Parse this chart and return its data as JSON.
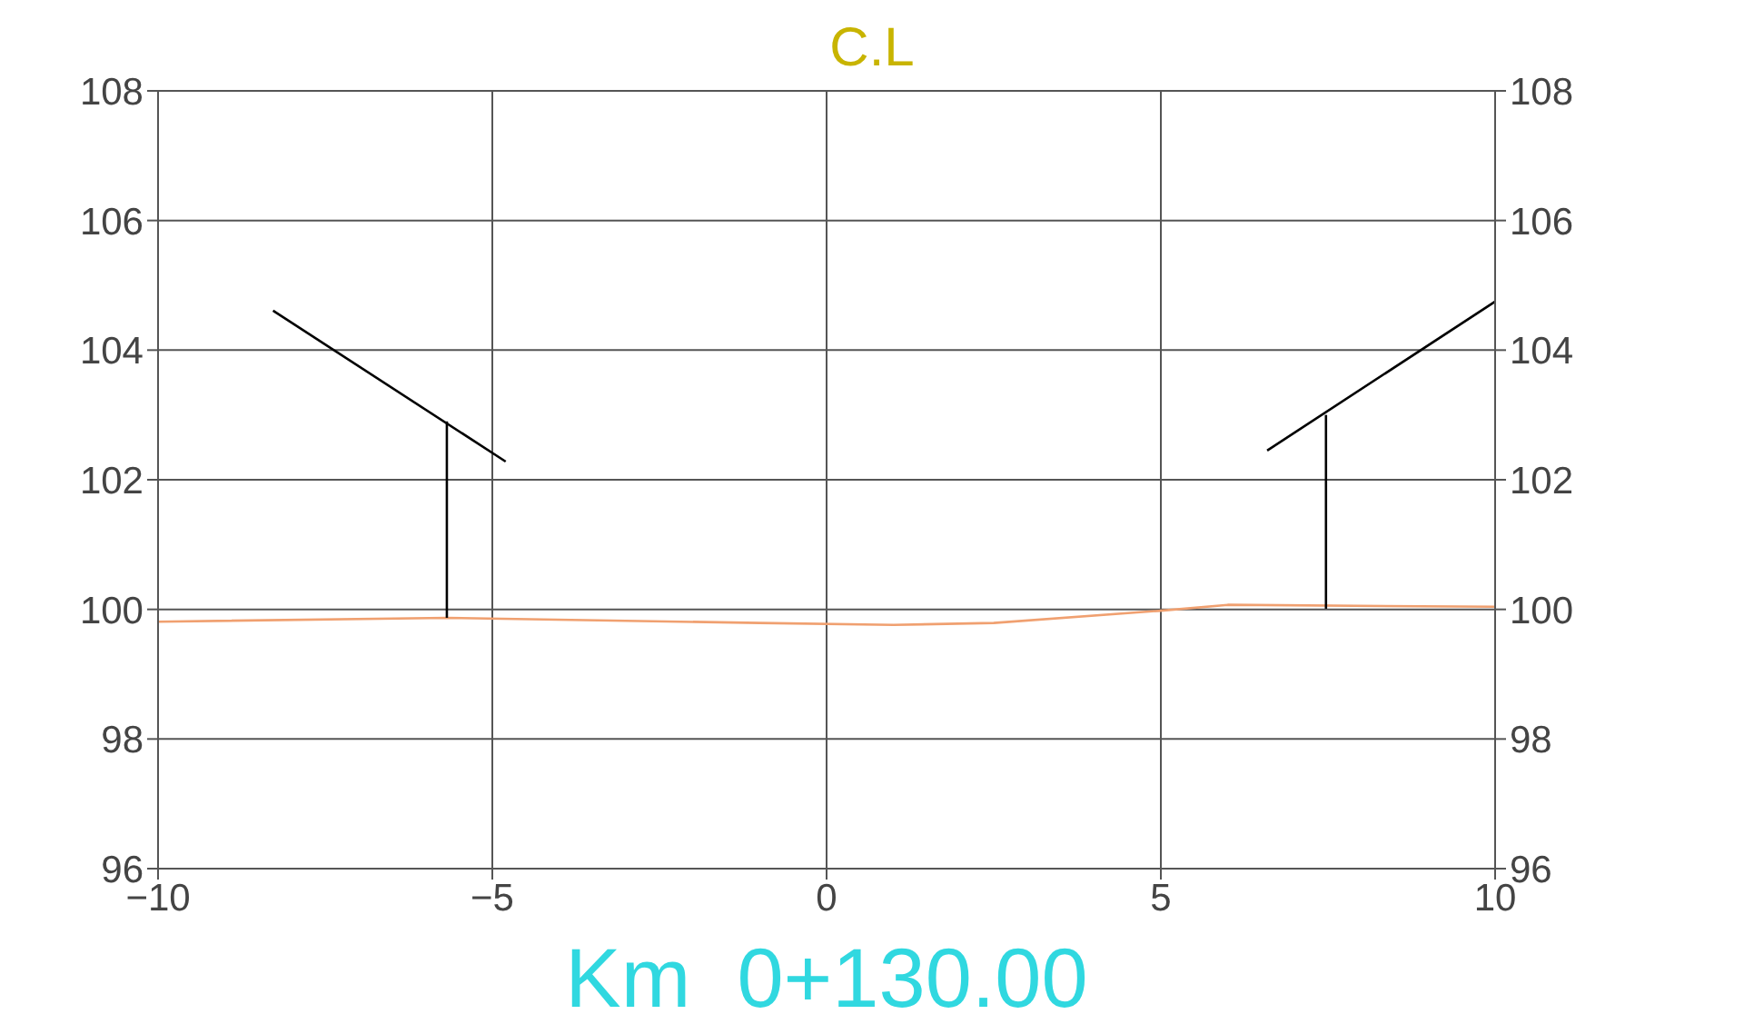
{
  "chart_data": {
    "type": "line",
    "title": "C.L",
    "xlabel": "Km  0+130.00",
    "xlim": [
      -10,
      10
    ],
    "xticks": [
      -10,
      -5,
      0,
      5,
      10
    ],
    "ylim": [
      96,
      108
    ],
    "yticks": [
      96,
      98,
      100,
      102,
      104,
      106,
      108
    ],
    "y2lim": [
      96,
      108
    ],
    "y2ticks": [
      96,
      98,
      100,
      102,
      104,
      106,
      108
    ],
    "grid": true,
    "legend": false,
    "marker": "none",
    "line_style": "solid",
    "series": [
      {
        "color": "#f0a070",
        "x": [
          -10,
          -5.68,
          -1,
          1,
          2.5,
          5,
          6,
          10
        ],
        "values": [
          99.81,
          99.87,
          99.79,
          99.76,
          99.79,
          99.98,
          100.07,
          100.04
        ]
      },
      {
        "color": "#000000",
        "x": [
          -8.28,
          -4.8
        ],
        "values": [
          104.61,
          102.28
        ]
      },
      {
        "color": "#000000",
        "x": [
          -5.68,
          -5.68
        ],
        "values": [
          99.87,
          102.9
        ]
      },
      {
        "color": "#000000",
        "x": [
          6.59,
          10
        ],
        "values": [
          102.45,
          104.75
        ]
      },
      {
        "color": "#000000",
        "x": [
          7.47,
          7.47
        ],
        "values": [
          100.01,
          103.0
        ]
      }
    ]
  }
}
